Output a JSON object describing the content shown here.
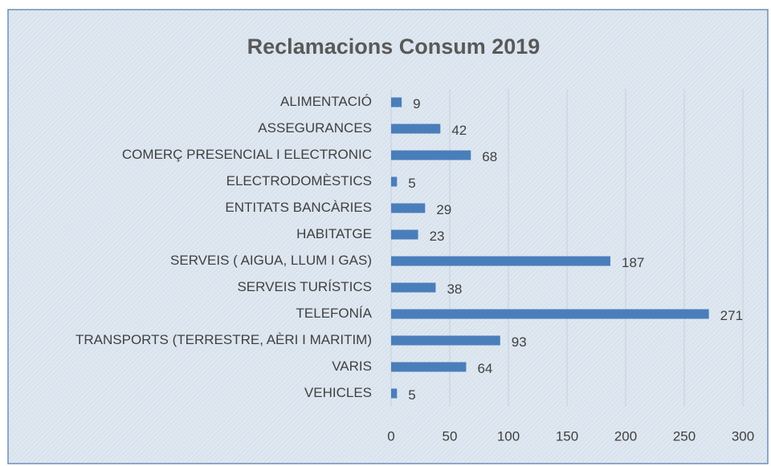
{
  "chart_data": {
    "type": "bar",
    "orientation": "horizontal",
    "title": "Reclamacions Consum 2019",
    "categories": [
      "ALIMENTACIÓ",
      "ASSEGURANCES",
      "COMERÇ PRESENCIAL I ELECTRONIC",
      "ELECTRODOMÈSTICS",
      "ENTITATS BANCÀRIES",
      "HABITATGE",
      "SERVEIS  ( AIGUA, LLUM I GAS)",
      "SERVEIS TURÍSTICS",
      "TELEFONÍA",
      "TRANSPORTS (TERRESTRE, AÈRI I MARITIM)",
      "VARIS",
      "VEHICLES"
    ],
    "values": [
      9,
      42,
      68,
      5,
      29,
      23,
      187,
      38,
      271,
      93,
      64,
      5
    ],
    "color": "#4a7ebb",
    "xlim": [
      0,
      300
    ],
    "xticks": [
      0,
      50,
      100,
      150,
      200,
      250,
      300
    ],
    "grid": true
  }
}
